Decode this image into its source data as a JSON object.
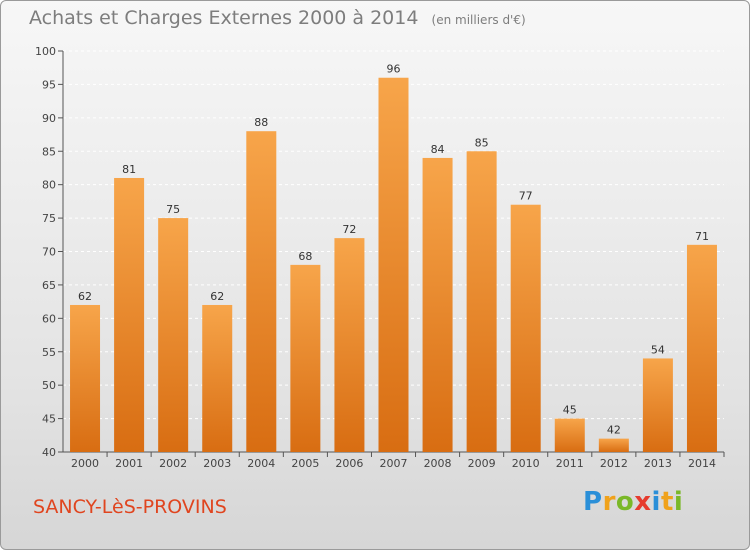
{
  "title": "Achats et Charges Externes 2000 à 2014",
  "unit": "(en milliers d'€)",
  "city": "SANCY-LèS-PROVINS",
  "logo": {
    "letters": [
      "P",
      "r",
      "o",
      "x",
      "i",
      "t",
      "i"
    ],
    "colors": [
      "#2a8fd8",
      "#f0a21b",
      "#7ab828",
      "#e63b2e",
      "#2a8fd8",
      "#f0a21b",
      "#7ab828"
    ]
  },
  "colors": {
    "bar_top": "#f7a54a",
    "bar_bottom": "#d86d12",
    "axis": "#555555",
    "grid": "#ffffff"
  },
  "chart_data": {
    "type": "bar",
    "categories": [
      "2000",
      "2001",
      "2002",
      "2003",
      "2004",
      "2005",
      "2006",
      "2007",
      "2008",
      "2009",
      "2010",
      "2011",
      "2012",
      "2013",
      "2014"
    ],
    "values": [
      62,
      81,
      75,
      62,
      88,
      68,
      72,
      96,
      84,
      85,
      77,
      45,
      42,
      54,
      71
    ],
    "ylim": [
      40,
      100
    ],
    "yticks": [
      40,
      45,
      50,
      55,
      60,
      65,
      70,
      75,
      80,
      85,
      90,
      95,
      100
    ],
    "grid": true
  }
}
